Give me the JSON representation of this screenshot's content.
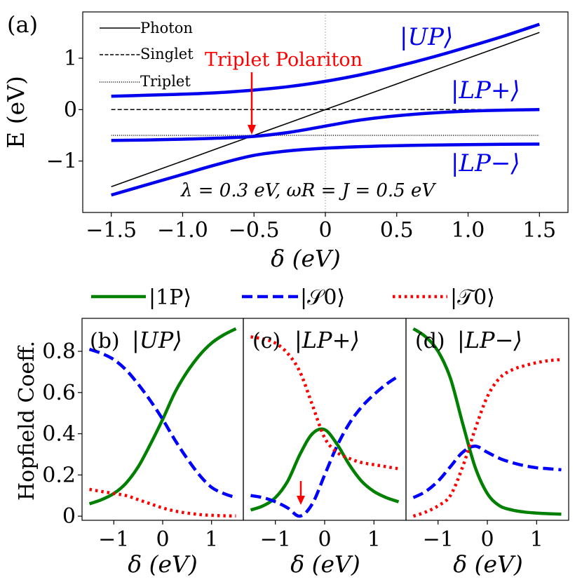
{
  "chart_data": [
    {
      "id": "a",
      "type": "line",
      "panel_label": "(a)",
      "xlabel": "δ (eV)",
      "ylabel": "E (eV)",
      "xlim": [
        -1.7,
        1.7
      ],
      "ylim": [
        -2.0,
        1.9
      ],
      "xticks": [
        -1.5,
        -1.0,
        -0.5,
        0,
        0.5,
        1.0,
        1.5
      ],
      "xtick_labels": [
        "−1.5",
        "−1.0",
        "−0.5",
        "0",
        "0.5",
        "1.0",
        "1.5"
      ],
      "yticks": [
        1,
        0,
        -1
      ],
      "ytick_labels": [
        "1",
        "0",
        "−1"
      ],
      "params": {
        "lambda": 0.3,
        "omega_R": 0.5,
        "J": 0.5
      },
      "parameter_text": "λ = 0.3 eV,  ωR = J = 0.5 eV",
      "x": [
        -1.5,
        -1.25,
        -1.0,
        -0.75,
        -0.5,
        -0.25,
        0.0,
        0.25,
        0.5,
        0.75,
        1.0,
        1.25,
        1.5
      ],
      "series": [
        {
          "name": "Photon",
          "legend": "Photon",
          "style": "solid",
          "color": "#000000",
          "values": [
            -1.5,
            -1.25,
            -1.0,
            -0.75,
            -0.5,
            -0.25,
            0.0,
            0.25,
            0.5,
            0.75,
            1.0,
            1.25,
            1.5
          ]
        },
        {
          "name": "Singlet",
          "legend": "Singlet",
          "style": "dashed",
          "color": "#000000",
          "values": [
            0,
            0,
            0,
            0,
            0,
            0,
            0,
            0,
            0,
            0,
            0,
            0,
            0
          ]
        },
        {
          "name": "Triplet",
          "legend": "Triplet",
          "style": "dotted",
          "color": "#000000",
          "values": [
            -0.5,
            -0.5,
            -0.5,
            -0.5,
            -0.5,
            -0.5,
            -0.5,
            -0.5,
            -0.5,
            -0.5,
            -0.5,
            -0.5,
            -0.5
          ]
        },
        {
          "name": "UP",
          "label": "|UP⟩",
          "style": "solid",
          "color": "#0000ee",
          "values": [
            0.26,
            0.28,
            0.3,
            0.33,
            0.38,
            0.45,
            0.55,
            0.68,
            0.84,
            1.02,
            1.22,
            1.43,
            1.66
          ]
        },
        {
          "name": "LP+",
          "label": "|LP+⟩",
          "style": "solid",
          "color": "#0000ee",
          "values": [
            -0.6,
            -0.59,
            -0.575,
            -0.555,
            -0.52,
            -0.44,
            -0.32,
            -0.2,
            -0.12,
            -0.065,
            -0.03,
            -0.01,
            0.0
          ]
        },
        {
          "name": "LP-",
          "label": "|LP−⟩",
          "style": "solid",
          "color": "#0000ee",
          "values": [
            -1.66,
            -1.46,
            -1.26,
            -1.06,
            -0.89,
            -0.8,
            -0.75,
            -0.72,
            -0.7,
            -0.69,
            -0.68,
            -0.675,
            -0.67
          ]
        }
      ],
      "annotation": {
        "text": "Triplet Polariton",
        "color": "#ff0000",
        "x": -0.5,
        "y": -0.5
      }
    },
    {
      "id": "b",
      "type": "line",
      "panel_label": "(b)",
      "state": "|UP⟩",
      "xlabel": "δ (eV)",
      "ylabel": "Hopfield Coeff.",
      "xlim": [
        -1.65,
        1.65
      ],
      "ylim": [
        -0.02,
        0.96
      ],
      "xticks": [
        -1,
        0,
        1
      ],
      "xtick_labels": [
        "−1",
        "0",
        "1"
      ],
      "yticks": [
        0,
        0.2,
        0.4,
        0.6,
        0.8
      ],
      "ytick_labels": [
        "0",
        "0.2",
        "0.4",
        "0.6",
        "0.8"
      ],
      "x": [
        -1.5,
        -1.25,
        -1.0,
        -0.75,
        -0.5,
        -0.25,
        0.0,
        0.25,
        0.5,
        0.75,
        1.0,
        1.25,
        1.5
      ],
      "series": [
        {
          "name": "1P",
          "values": [
            0.06,
            0.08,
            0.11,
            0.16,
            0.24,
            0.35,
            0.47,
            0.6,
            0.7,
            0.78,
            0.84,
            0.88,
            0.91
          ]
        },
        {
          "name": "S0",
          "values": [
            0.81,
            0.79,
            0.76,
            0.71,
            0.64,
            0.56,
            0.47,
            0.37,
            0.28,
            0.2,
            0.14,
            0.11,
            0.09
          ]
        },
        {
          "name": "T0",
          "values": [
            0.13,
            0.12,
            0.11,
            0.1,
            0.08,
            0.06,
            0.04,
            0.025,
            0.015,
            0.008,
            0.004,
            0.002,
            0.001
          ]
        }
      ]
    },
    {
      "id": "c",
      "type": "line",
      "panel_label": "(c)",
      "state": "|LP+⟩",
      "xlabel": "δ (eV)",
      "xlim": [
        -1.65,
        1.65
      ],
      "ylim": [
        -0.02,
        0.96
      ],
      "xticks": [
        -1,
        0,
        1
      ],
      "xtick_labels": [
        "−1",
        "0",
        "1"
      ],
      "x": [
        -1.5,
        -1.25,
        -1.0,
        -0.75,
        -0.5,
        -0.25,
        0.0,
        0.25,
        0.5,
        0.75,
        1.0,
        1.25,
        1.5
      ],
      "series": [
        {
          "name": "1P",
          "values": [
            0.03,
            0.05,
            0.09,
            0.17,
            0.3,
            0.4,
            0.42,
            0.35,
            0.25,
            0.17,
            0.12,
            0.09,
            0.07
          ]
        },
        {
          "name": "S0",
          "values": [
            0.1,
            0.09,
            0.07,
            0.04,
            0.0,
            0.06,
            0.2,
            0.34,
            0.45,
            0.53,
            0.59,
            0.64,
            0.68
          ]
        },
        {
          "name": "T0",
          "values": [
            0.87,
            0.86,
            0.84,
            0.79,
            0.7,
            0.54,
            0.38,
            0.31,
            0.28,
            0.26,
            0.25,
            0.24,
            0.23
          ]
        }
      ],
      "annotation": {
        "x": -0.5,
        "y": 0.01,
        "color": "#ff0000"
      }
    },
    {
      "id": "d",
      "type": "line",
      "panel_label": "(d)",
      "state": "|LP−⟩",
      "xlabel": "δ (eV)",
      "xlim": [
        -1.65,
        1.65
      ],
      "ylim": [
        -0.02,
        0.96
      ],
      "xticks": [
        -1,
        0,
        1
      ],
      "xtick_labels": [
        "−1",
        "0",
        "1"
      ],
      "x": [
        -1.5,
        -1.25,
        -1.0,
        -0.75,
        -0.5,
        -0.25,
        0.0,
        0.25,
        0.5,
        0.75,
        1.0,
        1.25,
        1.5
      ],
      "series": [
        {
          "name": "1P",
          "values": [
            0.91,
            0.87,
            0.8,
            0.67,
            0.45,
            0.24,
            0.11,
            0.05,
            0.03,
            0.02,
            0.015,
            0.012,
            0.01
          ]
        },
        {
          "name": "S0",
          "values": [
            0.09,
            0.12,
            0.17,
            0.24,
            0.31,
            0.34,
            0.31,
            0.28,
            0.26,
            0.245,
            0.235,
            0.23,
            0.225
          ]
        },
        {
          "name": "T0",
          "values": [
            0.0,
            0.02,
            0.05,
            0.1,
            0.24,
            0.42,
            0.58,
            0.67,
            0.71,
            0.73,
            0.745,
            0.755,
            0.76
          ]
        }
      ]
    }
  ],
  "legend": {
    "entries": [
      {
        "key": "1P",
        "label": "|1P⟩",
        "color": "#008000",
        "style": "solid"
      },
      {
        "key": "S0",
        "label": "|𝒮0⟩",
        "color": "#0000ff",
        "style": "dashed"
      },
      {
        "key": "T0",
        "label": "|𝒯0⟩",
        "color": "#ff0000",
        "style": "dotted"
      }
    ]
  }
}
